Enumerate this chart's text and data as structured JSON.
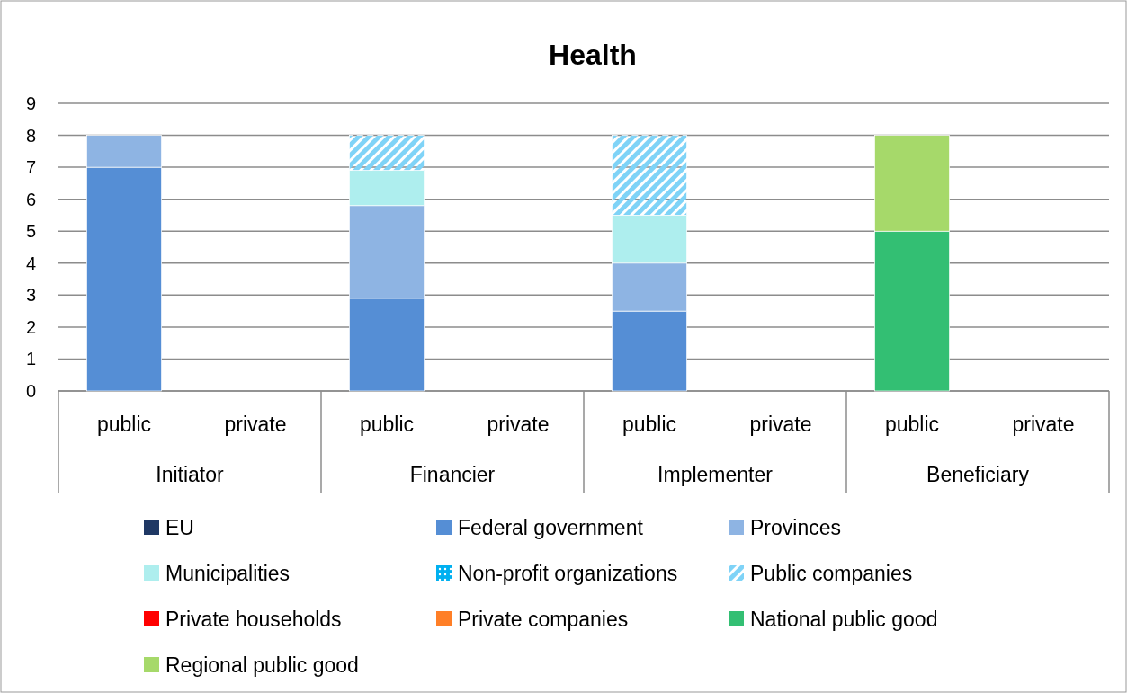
{
  "chart_data": {
    "type": "bar",
    "title": "Health",
    "stacked": true,
    "grid": "y",
    "legend": "bottom",
    "categories": [
      "public",
      "private",
      "public",
      "private",
      "public",
      "private",
      "public",
      "private"
    ],
    "annotations": [
      "Initiator",
      "Financier",
      "Implementer",
      "Beneficiary"
    ],
    "ylim": [
      0,
      9
    ],
    "yticks": [
      0,
      1,
      2,
      3,
      4,
      5,
      6,
      7,
      8,
      9
    ],
    "series": [
      {
        "name": "EU",
        "color": "#1f3864",
        "values": [
          null,
          null,
          null,
          null,
          null,
          null,
          null,
          null
        ]
      },
      {
        "name": "Federal government",
        "color": "#558ed5",
        "values": [
          7,
          null,
          2.9,
          null,
          2.5,
          null,
          null,
          null
        ]
      },
      {
        "name": "Provinces",
        "color": "#8eb4e3",
        "values": [
          1,
          null,
          2.9,
          null,
          1.5,
          null,
          null,
          null
        ]
      },
      {
        "name": "Municipalities",
        "color": "#aeeeee",
        "values": [
          null,
          null,
          1.1,
          null,
          1.5,
          null,
          null,
          null
        ]
      },
      {
        "name": "Non-profit organizations",
        "color": "#00b0f0",
        "values": [
          null,
          null,
          null,
          null,
          null,
          null,
          null,
          null
        ]
      },
      {
        "name": "Public companies",
        "color": "#7fd3f7",
        "values": [
          null,
          null,
          1.1,
          null,
          2.5,
          null,
          null,
          null
        ]
      },
      {
        "name": "Private households",
        "color": "#ff0000",
        "values": [
          null,
          null,
          null,
          null,
          null,
          null,
          null,
          null
        ]
      },
      {
        "name": "Private companies",
        "color": "#ff7f27",
        "values": [
          null,
          null,
          null,
          null,
          null,
          null,
          null,
          null
        ]
      },
      {
        "name": "National public good",
        "color": "#33bf73",
        "values": [
          null,
          null,
          null,
          null,
          null,
          null,
          5,
          null
        ]
      },
      {
        "name": "Regional public good",
        "color": "#a6d96a",
        "values": [
          null,
          null,
          null,
          null,
          null,
          null,
          3,
          null
        ]
      }
    ]
  }
}
